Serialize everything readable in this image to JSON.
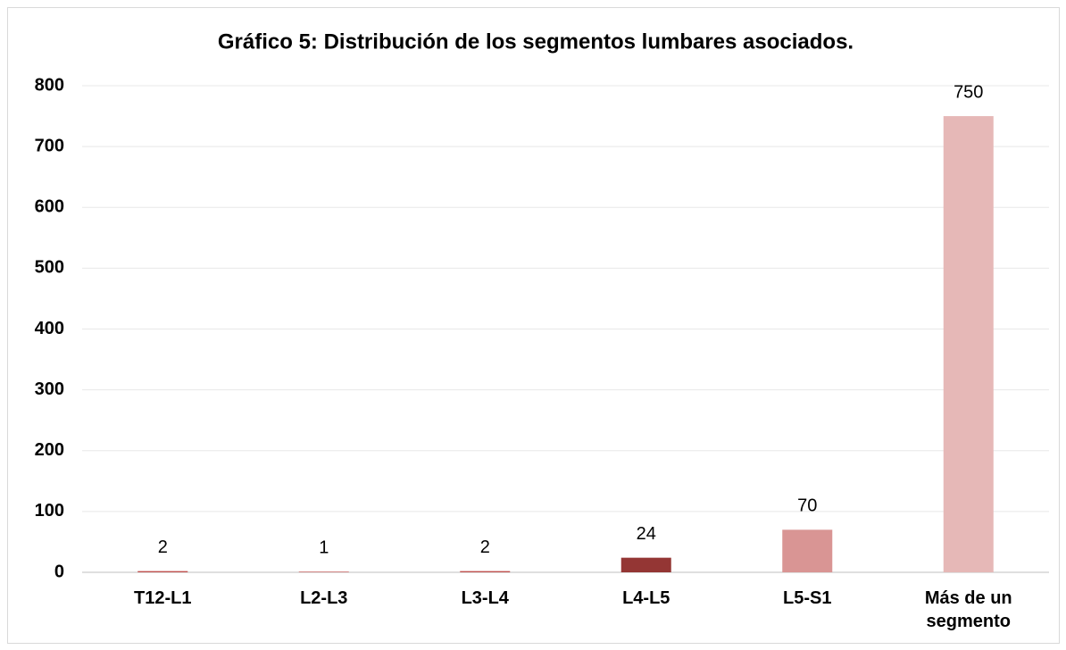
{
  "chart_data": {
    "type": "bar",
    "title": "Gráfico 5: Distribución de los segmentos lumbares asociados.",
    "categories": [
      "T12-L1",
      "L2-L3",
      "L3-L4",
      "L4-L5",
      "L5-S1",
      "Más de un segmento"
    ],
    "values": [
      2,
      1,
      2,
      24,
      70,
      750
    ],
    "colors": [
      "#c0504d",
      "#c0504d",
      "#c0504d",
      "#943634",
      "#d99594",
      "#e6b8b7"
    ],
    "ylim": [
      0,
      800
    ],
    "yticks": [
      0,
      100,
      200,
      300,
      400,
      500,
      600,
      700,
      800
    ],
    "grid": true
  }
}
